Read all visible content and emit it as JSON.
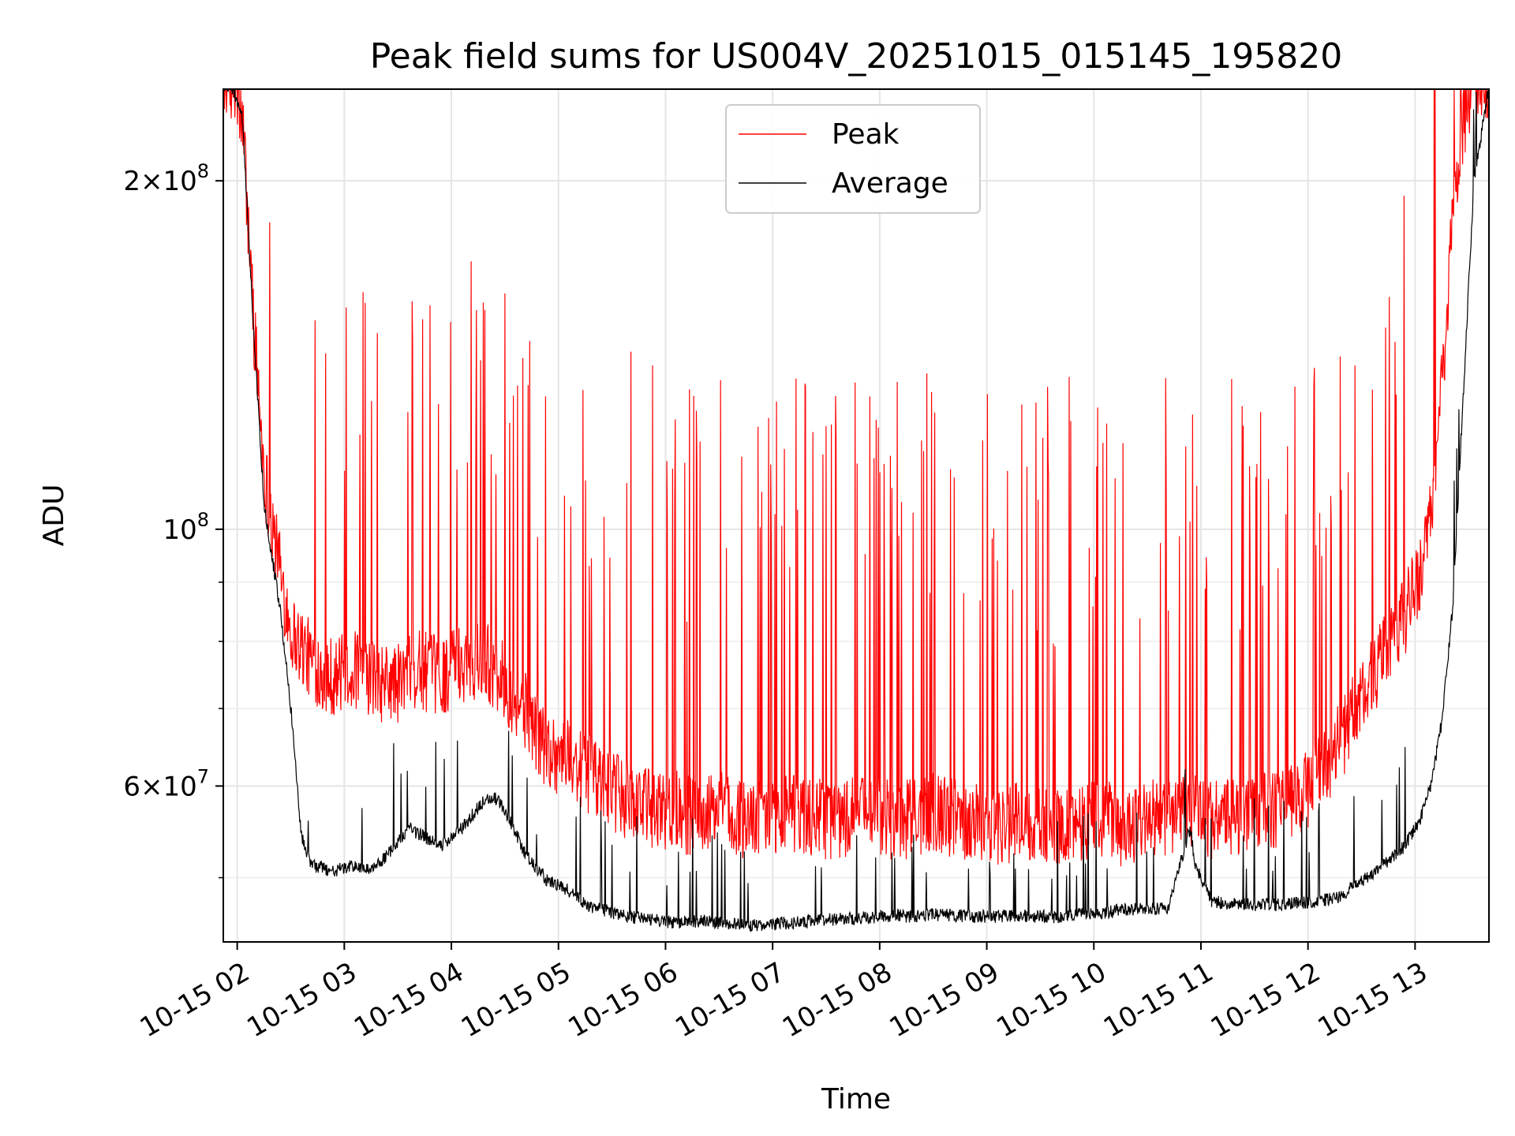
{
  "chart_data": {
    "type": "line",
    "title": "Peak field sums for US004V_20251015_015145_195820",
    "xlabel": "Time",
    "ylabel": "ADU",
    "yscale": "log",
    "ylim": [
      44000000,
      240000000
    ],
    "xlim_hours": [
      1.87,
      13.69
    ],
    "grid": true,
    "legend_position": "upper center",
    "x_ticks": [
      {
        "hour": 2,
        "label": "10-15 02"
      },
      {
        "hour": 3,
        "label": "10-15 03"
      },
      {
        "hour": 4,
        "label": "10-15 04"
      },
      {
        "hour": 5,
        "label": "10-15 05"
      },
      {
        "hour": 6,
        "label": "10-15 06"
      },
      {
        "hour": 7,
        "label": "10-15 07"
      },
      {
        "hour": 8,
        "label": "10-15 08"
      },
      {
        "hour": 9,
        "label": "10-15 09"
      },
      {
        "hour": 10,
        "label": "10-15 10"
      },
      {
        "hour": 11,
        "label": "10-15 11"
      },
      {
        "hour": 12,
        "label": "10-15 12"
      },
      {
        "hour": 13,
        "label": "10-15 13"
      }
    ],
    "y_major_ticks": [
      {
        "value": 60000000,
        "base": "6",
        "exp": "7"
      },
      {
        "value": 100000000,
        "base": "",
        "exp": "8"
      },
      {
        "value": 200000000,
        "base": "2",
        "exp": "8"
      }
    ],
    "y_minor_ticks": [
      50000000,
      70000000,
      80000000,
      90000000,
      300000000
    ],
    "series": [
      {
        "name": "Peak",
        "color": "#ff0000",
        "x_hours": [
          1.87,
          1.95,
          2.05,
          2.15,
          2.25,
          2.4,
          2.5,
          2.7,
          2.9,
          3.1,
          3.3,
          3.5,
          3.7,
          3.9,
          4.1,
          4.3,
          4.5,
          4.7,
          4.9,
          5.1,
          5.3,
          5.5,
          5.7,
          5.9,
          6.1,
          6.3,
          6.5,
          6.7,
          6.9,
          7.1,
          7.3,
          7.5,
          7.7,
          7.9,
          8.1,
          8.3,
          8.5,
          8.7,
          8.9,
          9.1,
          9.3,
          9.5,
          9.7,
          9.9,
          10.1,
          10.3,
          10.5,
          10.7,
          10.9,
          11.1,
          11.3,
          11.5,
          11.7,
          11.9,
          12.1,
          12.3,
          12.5,
          12.7,
          12.9,
          13.05,
          13.15,
          13.25,
          13.35,
          13.45,
          13.55,
          13.69
        ],
        "values": [
          240000000,
          240000000,
          220000000,
          150000000,
          110000000,
          90000000,
          80000000,
          75000000,
          73000000,
          74000000,
          72000000,
          72000000,
          74000000,
          73000000,
          75000000,
          76000000,
          72000000,
          68000000,
          63000000,
          62000000,
          60000000,
          58000000,
          57000000,
          56000000,
          56000000,
          55000000,
          56000000,
          55000000,
          55000000,
          56000000,
          55000000,
          55000000,
          55000000,
          56000000,
          55000000,
          55000000,
          56000000,
          55000000,
          55000000,
          54000000,
          55000000,
          54000000,
          54000000,
          55000000,
          55000000,
          54000000,
          55000000,
          55000000,
          56000000,
          55000000,
          55000000,
          56000000,
          56000000,
          57000000,
          60000000,
          64000000,
          70000000,
          76000000,
          82000000,
          90000000,
          100000000,
          130000000,
          180000000,
          220000000,
          240000000,
          240000000
        ]
      },
      {
        "name": "Average",
        "color": "#000000",
        "x_hours": [
          1.87,
          1.95,
          2.05,
          2.15,
          2.25,
          2.4,
          2.5,
          2.6,
          2.7,
          2.9,
          3.1,
          3.25,
          3.4,
          3.6,
          3.75,
          3.9,
          4.1,
          4.3,
          4.4,
          4.5,
          4.7,
          4.9,
          5.1,
          5.3,
          5.5,
          5.7,
          5.9,
          6.1,
          6.3,
          6.5,
          6.7,
          6.9,
          7.1,
          7.3,
          7.5,
          7.7,
          7.9,
          8.1,
          8.3,
          8.5,
          8.7,
          8.9,
          9.1,
          9.3,
          9.5,
          9.7,
          9.9,
          10.1,
          10.3,
          10.5,
          10.7,
          10.85,
          10.9,
          10.95,
          11.1,
          11.3,
          11.5,
          11.7,
          11.9,
          12.1,
          12.3,
          12.5,
          12.7,
          12.9,
          13.05,
          13.15,
          13.25,
          13.35,
          13.45,
          13.55,
          13.69
        ],
        "values": [
          240000000,
          240000000,
          225000000,
          150000000,
          105000000,
          85000000,
          70000000,
          54000000,
          51000000,
          50500000,
          51000000,
          50500000,
          52000000,
          55000000,
          54000000,
          53000000,
          55000000,
          58000000,
          58500000,
          57000000,
          52000000,
          49500000,
          48500000,
          47000000,
          46500000,
          46000000,
          45800000,
          45500000,
          45700000,
          45500000,
          45400000,
          45300000,
          45500000,
          45600000,
          45800000,
          45900000,
          46000000,
          46200000,
          46100000,
          46300000,
          46200000,
          46100000,
          46100000,
          46200000,
          46100000,
          46100000,
          46400000,
          46500000,
          46700000,
          46800000,
          46900000,
          53000000,
          55000000,
          51000000,
          47500000,
          47300000,
          47200000,
          47200000,
          47300000,
          47500000,
          48000000,
          49500000,
          51000000,
          53000000,
          56000000,
          60000000,
          68000000,
          85000000,
          130000000,
          200000000,
          240000000
        ]
      }
    ]
  }
}
